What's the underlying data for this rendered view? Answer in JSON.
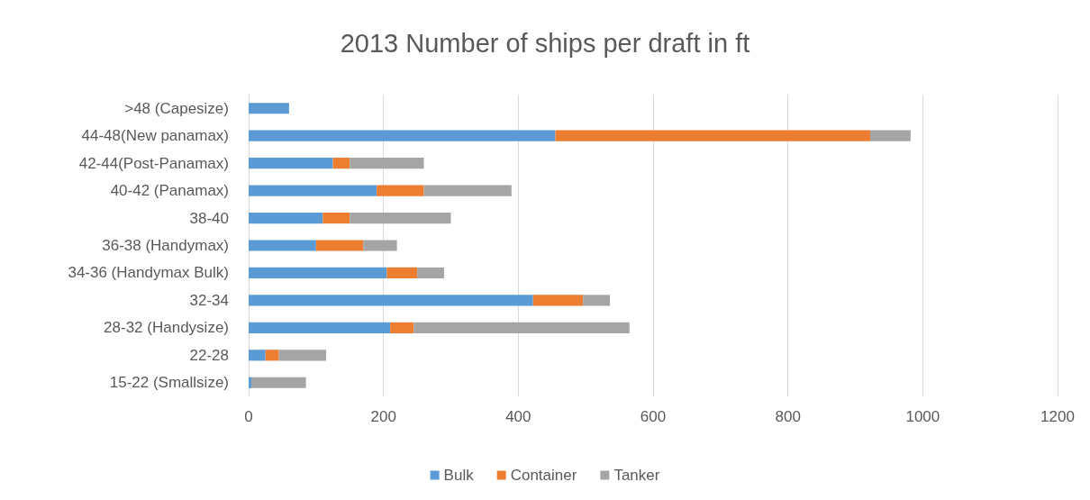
{
  "chart_data": {
    "type": "bar",
    "title": "2013 Number of ships per draft in ft",
    "orientation": "horizontal",
    "stacked": true,
    "categories": [
      ">48 (Capesize)",
      "44-48(New panamax)",
      "42-44(Post-Panamax)",
      "40-42 (Panamax)",
      "38-40",
      "36-38 (Handymax)",
      "34-36 (Handymax Bulk)",
      "32-34",
      "28-32 (Handysize)",
      "22-28",
      "15-22 (Smallsize)"
    ],
    "series": [
      {
        "name": "Bulk",
        "color": "#5b9bd5",
        "values": [
          60,
          455,
          125,
          190,
          110,
          100,
          205,
          422,
          210,
          25,
          4
        ]
      },
      {
        "name": "Container",
        "color": "#ed7d31",
        "values": [
          0,
          467,
          25,
          70,
          40,
          70,
          45,
          74,
          35,
          20,
          0
        ]
      },
      {
        "name": "Tanker",
        "color": "#a5a5a5",
        "values": [
          0,
          60,
          110,
          130,
          150,
          50,
          40,
          40,
          320,
          70,
          81
        ]
      }
    ],
    "xlim": [
      0,
      1200
    ],
    "xticks": [
      0,
      200,
      400,
      600,
      800,
      1000,
      1200
    ],
    "grid": "x",
    "legend": "bottom"
  }
}
